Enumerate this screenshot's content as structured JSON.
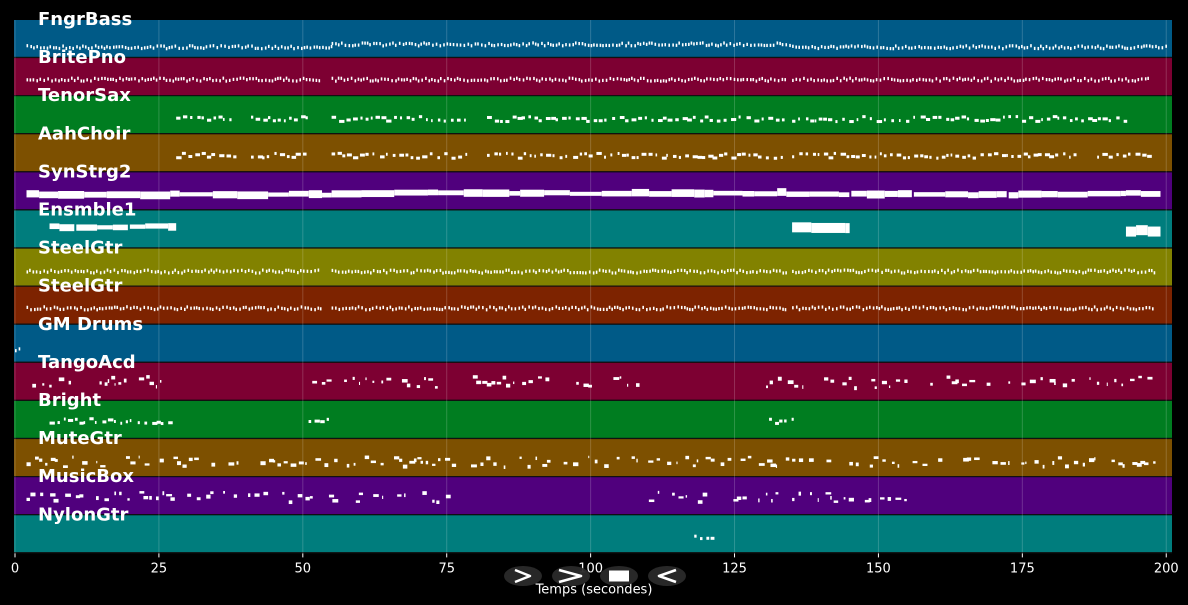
{
  "view": {
    "x_min": 0,
    "x_max": 201,
    "grid": true,
    "background": "#000000",
    "note_color": "#ffffff"
  },
  "axis": {
    "xlabel": "Temps (secondes)",
    "ticks": [
      0,
      25,
      50,
      75,
      100,
      125,
      150,
      175,
      200
    ]
  },
  "tracks": [
    {
      "name": "FngrBass",
      "color": "#005a87",
      "style": "dots",
      "segments": [
        [
          2,
          55
        ],
        [
          55,
          135
        ],
        [
          135,
          200
        ]
      ],
      "pitch": [
        0.7,
        0.6,
        0.7
      ]
    },
    {
      "name": "BritePno",
      "color": "#7d0032",
      "style": "dots",
      "segments": [
        [
          2,
          53
        ],
        [
          55,
          134
        ],
        [
          135,
          197
        ]
      ],
      "pitch": [
        0.5,
        0.5,
        0.5
      ]
    },
    {
      "name": "TenorSax",
      "color": "#007d20",
      "style": "dashes",
      "segments": [
        [
          28,
          38
        ],
        [
          41,
          51
        ],
        [
          55,
          79
        ],
        [
          82,
          134
        ],
        [
          135,
          193
        ]
      ],
      "pitch": [
        0.55,
        0.55,
        0.55,
        0.55,
        0.55
      ]
    },
    {
      "name": "AahChoir",
      "color": "#7d5000",
      "style": "dashes",
      "segments": [
        [
          28,
          38
        ],
        [
          41,
          51
        ],
        [
          55,
          79
        ],
        [
          82,
          134
        ],
        [
          135,
          185
        ],
        [
          188,
          197
        ]
      ],
      "pitch": [
        0.5,
        0.5,
        0.5,
        0.5,
        0.5,
        0.5
      ]
    },
    {
      "name": "SynStrg2",
      "color": "#50007d",
      "style": "bars",
      "segments": [
        [
          2,
          55
        ],
        [
          55,
          134
        ],
        [
          134,
          193
        ],
        [
          193,
          199
        ]
      ],
      "pitch": [
        0.5,
        0.45,
        0.5,
        0.45
      ]
    },
    {
      "name": "Ensmble1",
      "color": "#007d7d",
      "style": "bars",
      "segments": [
        [
          6,
          28
        ],
        [
          135,
          145
        ],
        [
          193,
          199
        ]
      ],
      "pitch": [
        0.3,
        0.35,
        0.45
      ]
    },
    {
      "name": "SteelGtr",
      "color": "#828200",
      "style": "dots",
      "segments": [
        [
          2,
          53
        ],
        [
          55,
          134
        ],
        [
          135,
          198
        ]
      ],
      "pitch": [
        0.55,
        0.55,
        0.55
      ]
    },
    {
      "name": "SteelGtr",
      "color": "#7d2300",
      "style": "dots",
      "segments": [
        [
          2,
          53
        ],
        [
          55,
          134
        ],
        [
          135,
          198
        ]
      ],
      "pitch": [
        0.5,
        0.5,
        0.5
      ]
    },
    {
      "name": "GM Drums",
      "color": "#005a87",
      "style": "dots",
      "segments": [
        [
          0,
          1
        ]
      ],
      "pitch": [
        0.6
      ]
    },
    {
      "name": "TangoAcd",
      "color": "#7d0032",
      "style": "scatter",
      "segments": [
        [
          3,
          27
        ],
        [
          39,
          41
        ],
        [
          51,
          75
        ],
        [
          79,
          108
        ],
        [
          128,
          155
        ],
        [
          159,
          198
        ]
      ],
      "pitch": [
        0.4,
        0.5,
        0.45,
        0.4,
        0.45,
        0.4
      ]
    },
    {
      "name": "Bright",
      "color": "#007d20",
      "style": "dashes",
      "segments": [
        [
          6,
          27
        ],
        [
          51,
          55
        ],
        [
          131,
          135
        ]
      ],
      "pitch": [
        0.45,
        0.45,
        0.45
      ]
    },
    {
      "name": "MuteGtr",
      "color": "#7d5000",
      "style": "scatter",
      "segments": [
        [
          2,
          40
        ],
        [
          42,
          108
        ],
        [
          110,
          134
        ],
        [
          135,
          198
        ]
      ],
      "pitch": [
        0.55,
        0.55,
        0.55,
        0.55
      ]
    },
    {
      "name": "MusicBox",
      "color": "#50007d",
      "style": "scatter",
      "segments": [
        [
          2,
          27
        ],
        [
          27,
          75
        ],
        [
          109,
          134
        ],
        [
          135,
          156
        ]
      ],
      "pitch": [
        0.4,
        0.45,
        0.45,
        0.45
      ]
    },
    {
      "name": "NylonGtr",
      "color": "#007d7d",
      "style": "dashes",
      "segments": [
        [
          118,
          121
        ]
      ],
      "pitch": [
        0.5
      ]
    }
  ],
  "controls": [
    {
      "id": "play",
      "icon": "play-icon"
    },
    {
      "id": "fast-forward",
      "icon": "fast-forward-icon"
    },
    {
      "id": "stop",
      "icon": "stop-icon"
    },
    {
      "id": "rewind",
      "icon": "rewind-icon"
    }
  ]
}
